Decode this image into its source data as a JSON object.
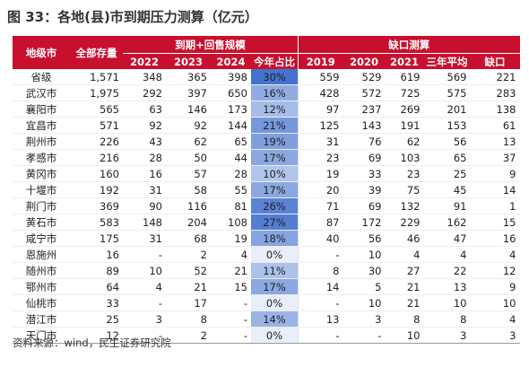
{
  "title": "图 33：各地(县)市到期压力测算（亿元）",
  "table": {
    "group_headers": [
      "到期+回售规模",
      "缺口测算"
    ],
    "headers": [
      "地级市",
      "全部存量",
      "2022",
      "2023",
      "2024",
      "今年占比",
      "2019",
      "2020",
      "2021",
      "三年平均",
      "缺口"
    ],
    "rows": [
      [
        "省级",
        "1,571",
        "348",
        "365",
        "398",
        "30%",
        "559",
        "529",
        "619",
        "569",
        "221"
      ],
      [
        "武汉市",
        "1,975",
        "292",
        "397",
        "650",
        "16%",
        "428",
        "572",
        "725",
        "575",
        "283"
      ],
      [
        "襄阳市",
        "565",
        "63",
        "146",
        "173",
        "12%",
        "97",
        "237",
        "269",
        "201",
        "138"
      ],
      [
        "宜昌市",
        "571",
        "92",
        "92",
        "144",
        "21%",
        "125",
        "143",
        "191",
        "153",
        "61"
      ],
      [
        "荆州市",
        "226",
        "43",
        "62",
        "65",
        "19%",
        "31",
        "76",
        "62",
        "56",
        "13"
      ],
      [
        "孝感市",
        "216",
        "28",
        "50",
        "44",
        "17%",
        "23",
        "69",
        "103",
        "65",
        "37"
      ],
      [
        "黄冈市",
        "160",
        "16",
        "57",
        "28",
        "10%",
        "19",
        "33",
        "23",
        "25",
        "9"
      ],
      [
        "十堰市",
        "192",
        "31",
        "58",
        "55",
        "17%",
        "20",
        "39",
        "75",
        "45",
        "14"
      ],
      [
        "荆门市",
        "369",
        "90",
        "116",
        "81",
        "26%",
        "71",
        "69",
        "132",
        "91",
        "1"
      ],
      [
        "黄石市",
        "583",
        "148",
        "204",
        "108",
        "27%",
        "87",
        "172",
        "229",
        "162",
        "15"
      ],
      [
        "咸宁市",
        "175",
        "31",
        "68",
        "19",
        "18%",
        "40",
        "56",
        "46",
        "47",
        "16"
      ],
      [
        "恩施州",
        "16",
        "-",
        "2",
        "4",
        "0%",
        "-",
        "10",
        "4",
        "4",
        "4"
      ],
      [
        "随州市",
        "89",
        "10",
        "52",
        "21",
        "11%",
        "8",
        "30",
        "27",
        "22",
        "12"
      ],
      [
        "鄂州市",
        "64",
        "4",
        "21",
        "15",
        "17%",
        "14",
        "5",
        "21",
        "13",
        "9"
      ],
      [
        "仙桃市",
        "33",
        "-",
        "17",
        "-",
        "0%",
        "-",
        "10",
        "21",
        "10",
        "10"
      ],
      [
        "潜江市",
        "25",
        "3",
        "8",
        "-",
        "14%",
        "13",
        "3",
        "8",
        "8",
        "4"
      ],
      [
        "天门市",
        "12",
        "-",
        "2",
        "-",
        "0%",
        "-",
        "-",
        "10",
        "3",
        "3"
      ]
    ]
  },
  "source": "资料来源：wind，民生证券研究院"
}
